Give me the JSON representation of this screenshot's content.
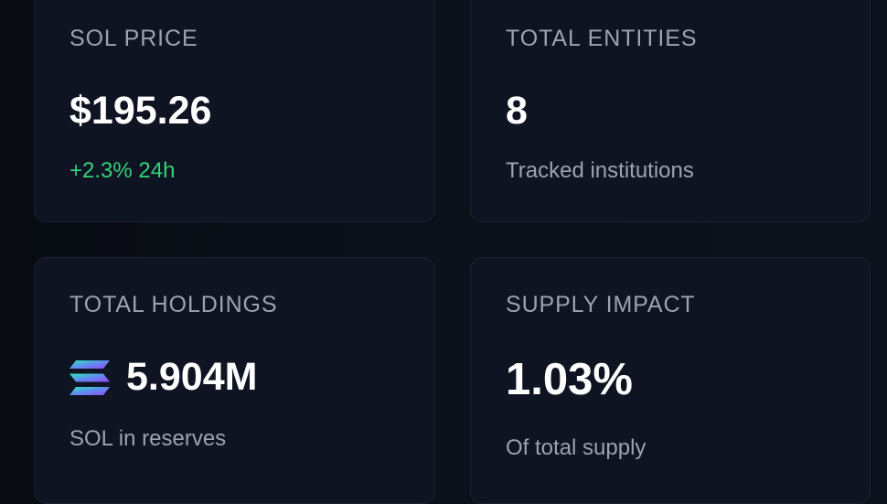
{
  "stats": {
    "sol_price": {
      "label": "SOL PRICE",
      "value": "$195.26",
      "change": "+2.3% 24h",
      "change_color": "#34d17a"
    },
    "total_entities": {
      "label": "TOTAL ENTITIES",
      "value": "8",
      "caption": "Tracked institutions"
    },
    "total_holdings": {
      "label": "TOTAL HOLDINGS",
      "icon": "solana-logo-icon",
      "value": "5.904M",
      "caption": "SOL in reserves"
    },
    "supply_impact": {
      "label": "SUPPLY IMPACT",
      "value": "1.03%",
      "caption": "Of total supply"
    }
  },
  "theme": {
    "background": "#0b1019",
    "card": "#0e1421",
    "border": "#1b2232",
    "muted_text": "#9ca3af",
    "primary_text": "#ffffff"
  }
}
